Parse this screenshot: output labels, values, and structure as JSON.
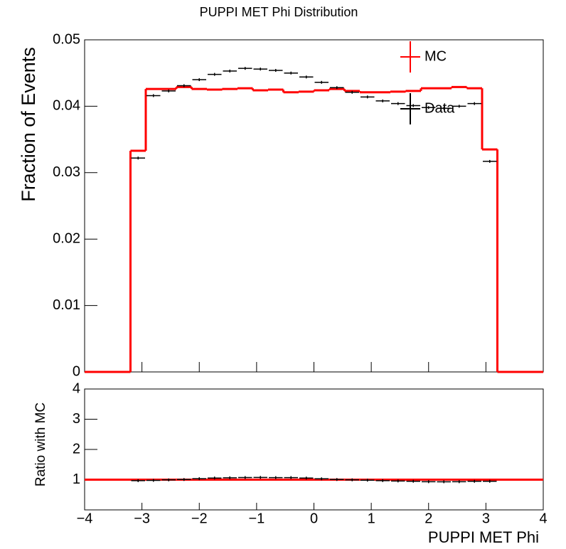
{
  "chart_data": [
    {
      "type": "histogram",
      "title": "PUPPI MET Phi Distribution",
      "y_label": "Fraction of Events",
      "bins": [
        -4,
        -3.7333,
        -3.4667,
        -3.2,
        -2.9333,
        -2.6667,
        -2.4,
        -2.1333,
        -1.8667,
        -1.6,
        -1.3333,
        -1.0667,
        -0.8,
        -0.5333,
        -0.2667,
        0,
        0.2667,
        0.5333,
        0.8,
        1.0667,
        1.3333,
        1.6,
        1.8667,
        2.1333,
        2.4,
        2.6667,
        2.9333,
        3.2,
        3.4667,
        3.7333,
        4
      ],
      "series": [
        {
          "name": "MC",
          "color": "#ff0000",
          "style": "step",
          "values": [
            0,
            0,
            0,
            0.0333,
            0.0426,
            0.0426,
            0.0429,
            0.0426,
            0.0425,
            0.0426,
            0.0427,
            0.0424,
            0.0425,
            0.0421,
            0.0422,
            0.0424,
            0.0426,
            0.0423,
            0.0421,
            0.0421,
            0.0422,
            0.0423,
            0.0427,
            0.0427,
            0.0429,
            0.0427,
            0.0335,
            0,
            0,
            0
          ]
        },
        {
          "name": "Data",
          "color": "#000000",
          "style": "points",
          "values": [
            null,
            null,
            null,
            0.0322,
            0.0416,
            0.0423,
            0.0431,
            0.044,
            0.0448,
            0.0453,
            0.0457,
            0.0456,
            0.0454,
            0.045,
            0.0444,
            0.0436,
            0.0428,
            0.0421,
            0.0414,
            0.0408,
            0.0404,
            0.0401,
            0.0398,
            0.0397,
            0.04,
            0.0404,
            0.0317,
            null,
            null,
            null
          ]
        }
      ],
      "xlim": [
        -4,
        4
      ],
      "ylim": [
        0,
        0.05
      ],
      "yticks": [
        0,
        0.01,
        0.02,
        0.03,
        0.04,
        0.05
      ],
      "legend": "upper right"
    },
    {
      "type": "histogram",
      "y_label": "Ratio with MC",
      "x_label": "PUPPI MET Phi",
      "bins": [
        -4,
        -3.7333,
        -3.4667,
        -3.2,
        -2.9333,
        -2.6667,
        -2.4,
        -2.1333,
        -1.8667,
        -1.6,
        -1.3333,
        -1.0667,
        -0.8,
        -0.5333,
        -0.2667,
        0,
        0.2667,
        0.5333,
        0.8,
        1.0667,
        1.3333,
        1.6,
        1.8667,
        2.1333,
        2.4,
        2.6667,
        2.9333,
        3.2,
        3.4667,
        3.7333,
        4
      ],
      "series": [
        {
          "name": "Data",
          "color": "#000000",
          "style": "points",
          "values": [
            null,
            null,
            null,
            0.967,
            0.977,
            0.993,
            1.005,
            1.033,
            1.054,
            1.063,
            1.07,
            1.075,
            1.068,
            1.069,
            1.052,
            1.028,
            1.005,
            0.995,
            0.983,
            0.969,
            0.957,
            0.948,
            0.932,
            0.93,
            0.932,
            0.946,
            0.946,
            null,
            null,
            null
          ]
        }
      ],
      "reference_line": {
        "value": 1,
        "color": "#ff0000"
      },
      "xlim": [
        -4,
        4
      ],
      "ylim": [
        0,
        4
      ],
      "yticks": [
        1,
        2,
        3,
        4
      ],
      "xticks": [
        {
          "value": -4,
          "label": "−4"
        },
        {
          "value": -3,
          "label": "−3"
        },
        {
          "value": -2,
          "label": "−2"
        },
        {
          "value": -1,
          "label": "−1"
        },
        0,
        1,
        2,
        3,
        4
      ]
    }
  ]
}
